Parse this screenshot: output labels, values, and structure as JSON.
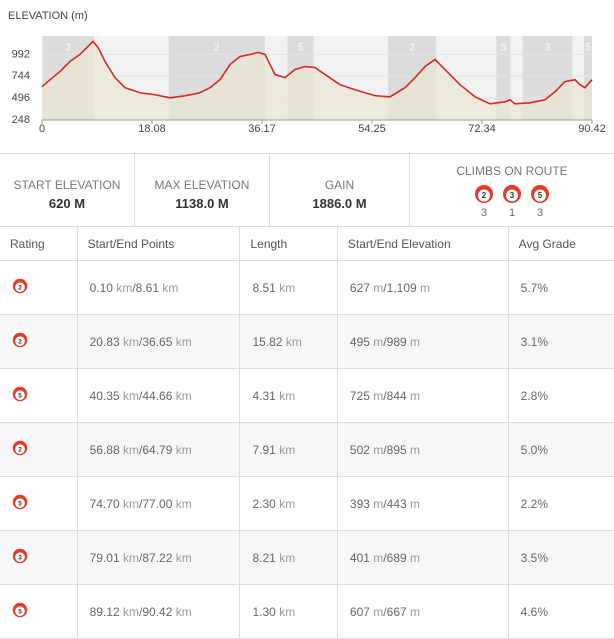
{
  "chart_data": {
    "type": "area",
    "title": "ELEVATION (m)",
    "x": [
      0,
      1.32,
      2.96,
      4.6,
      6.25,
      7.56,
      8.38,
      9.21,
      10.36,
      12.0,
      13.65,
      16.11,
      18.58,
      21.04,
      23.51,
      25.97,
      27.62,
      29.26,
      30.91,
      32.55,
      34.19,
      35.51,
      36.66,
      38.31,
      39.95,
      41.6,
      43.24,
      44.88,
      46.53,
      48.99,
      51.46,
      54.75,
      57.21,
      59.68,
      61.32,
      62.97,
      64.61,
      66.25,
      68.72,
      71.19,
      73.65,
      76.12,
      76.94,
      77.76,
      80.23,
      82.69,
      84.34,
      85.98,
      87.63,
      88.45,
      89.27,
      90.42
    ],
    "values": [
      625,
      705,
      797,
      911,
      991,
      1082,
      1138,
      1071,
      911,
      728,
      614,
      557,
      534,
      500,
      522,
      557,
      614,
      705,
      877,
      968,
      991,
      1014,
      991,
      763,
      728,
      820,
      854,
      843,
      763,
      648,
      591,
      523,
      511,
      614,
      728,
      854,
      934,
      820,
      648,
      511,
      431,
      454,
      477,
      431,
      443,
      477,
      568,
      683,
      705,
      648,
      614,
      705
    ],
    "color": "#d42a22",
    "fill": "#ebe6d4",
    "band_color": "#dcdcdc",
    "xlim": [
      0,
      90.42
    ],
    "xticks": [
      0,
      18.08,
      36.17,
      54.25,
      72.34,
      90.42
    ],
    "ylim": [
      248,
      1200
    ],
    "yticks": [
      248,
      496,
      744,
      992
    ],
    "grid": true,
    "climbs": [
      {
        "start": 0.1,
        "end": 8.61,
        "label": "2"
      },
      {
        "start": 20.83,
        "end": 36.65,
        "label": "2"
      },
      {
        "start": 40.35,
        "end": 44.66,
        "label": "5"
      },
      {
        "start": 56.88,
        "end": 64.79,
        "label": "2"
      },
      {
        "start": 74.7,
        "end": 77.0,
        "label": "5"
      },
      {
        "start": 79.01,
        "end": 87.22,
        "label": "3"
      },
      {
        "start": 89.12,
        "end": 90.42,
        "label": "5"
      }
    ]
  },
  "stats": [
    {
      "label": "START ELEVATION",
      "value": "620 M"
    },
    {
      "label": "MAX ELEVATION",
      "value": "1138.0 M"
    },
    {
      "label": "GAIN",
      "value": "1886.0 M"
    }
  ],
  "climbs_on_route": {
    "label": "CLIMBS ON ROUTE",
    "items": [
      {
        "category": "2",
        "count": "3"
      },
      {
        "category": "3",
        "count": "1"
      },
      {
        "category": "5",
        "count": "3"
      }
    ]
  },
  "table": {
    "headers": [
      "Rating",
      "Start/End Points",
      "Length",
      "Start/End Elevation",
      "Avg Grade"
    ],
    "km": "km",
    "m": "m",
    "separator": "/",
    "rows": [
      {
        "rating": "2",
        "start": "0.10",
        "end": "8.61",
        "length": "8.51",
        "elev_start": "627",
        "elev_end": "1,109",
        "grade": "5.7%"
      },
      {
        "rating": "2",
        "start": "20.83",
        "end": "36.65",
        "length": "15.82",
        "elev_start": "495",
        "elev_end": "989",
        "grade": "3.1%"
      },
      {
        "rating": "5",
        "start": "40.35",
        "end": "44.66",
        "length": "4.31",
        "elev_start": "725",
        "elev_end": "844",
        "grade": "2.8%"
      },
      {
        "rating": "2",
        "start": "56.88",
        "end": "64.79",
        "length": "7.91",
        "elev_start": "502",
        "elev_end": "895",
        "grade": "5.0%"
      },
      {
        "rating": "5",
        "start": "74.70",
        "end": "77.00",
        "length": "2.30",
        "elev_start": "393",
        "elev_end": "443",
        "grade": "2.2%"
      },
      {
        "rating": "3",
        "start": "79.01",
        "end": "87.22",
        "length": "8.21",
        "elev_start": "401",
        "elev_end": "689",
        "grade": "3.5%"
      },
      {
        "rating": "5",
        "start": "89.12",
        "end": "90.42",
        "length": "1.30",
        "elev_start": "607",
        "elev_end": "667",
        "grade": "4.6%"
      }
    ]
  }
}
